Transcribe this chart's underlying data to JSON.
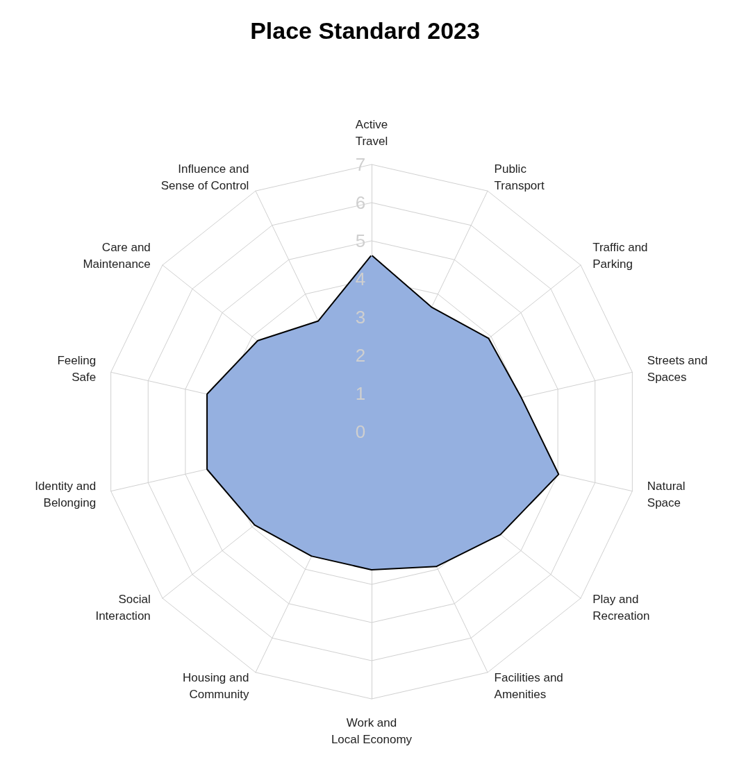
{
  "chart_data": {
    "type": "radar",
    "title": "Place Standard 2023",
    "categories": [
      "Active\nTravel",
      "Public\nTransport",
      "Traffic and\nParking",
      "Streets and\nSpaces",
      "Natural\nSpace",
      "Play and\nRecreation",
      "Facilities and\nAmenities",
      "Work and\nLocal Economy",
      "Housing and\nCommunity",
      "Social\nInteraction",
      "Identity and\nBelonging",
      "Feeling\nSafe",
      "Care and\nMaintenance",
      "Influence and\nSense of Control"
    ],
    "series": [
      {
        "color": "#95b0e0",
        "values": [
          4.6,
          3.6,
          3.9,
          4.0,
          5.0,
          4.3,
          3.9,
          3.6,
          3.6,
          3.9,
          4.4,
          4.4,
          3.8,
          3.2
        ]
      }
    ],
    "ylim": [
      0,
      7
    ],
    "yticks": [
      0,
      1,
      2,
      3,
      4,
      5,
      6,
      7
    ],
    "grid": true,
    "marker": "none",
    "line_style": "solid"
  }
}
